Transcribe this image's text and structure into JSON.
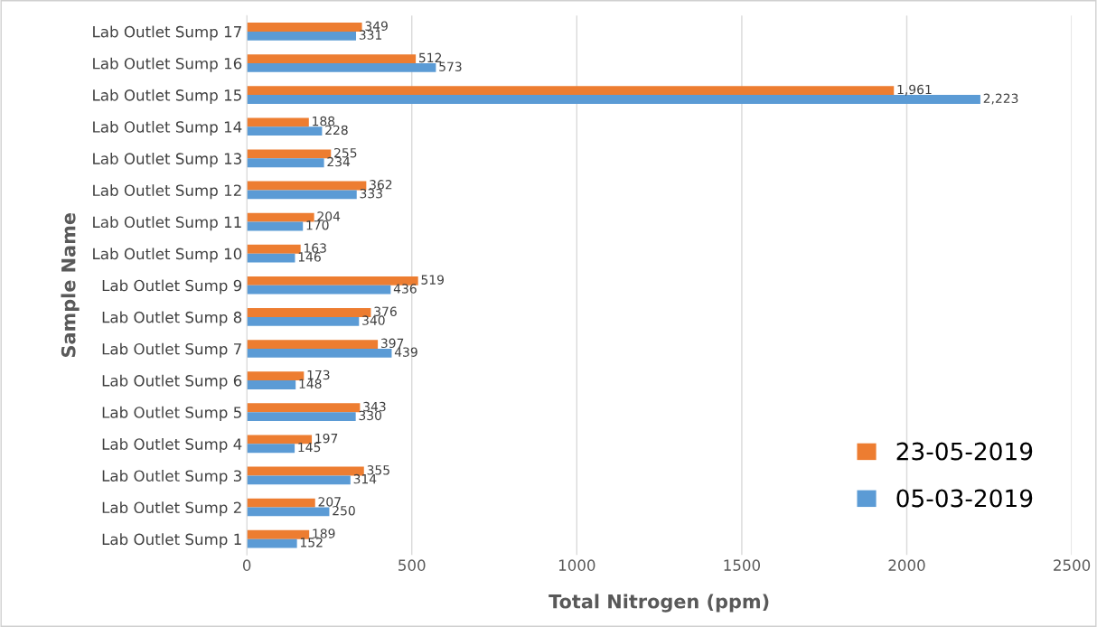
{
  "chart_data": {
    "type": "bar",
    "orientation": "horizontal",
    "xlabel": "Total Nitrogen (ppm)",
    "ylabel": "Sample Name",
    "categories": [
      "Lab Outlet Sump 17",
      "Lab Outlet Sump 16",
      "Lab Outlet Sump 15",
      "Lab Outlet Sump 14",
      "Lab Outlet Sump 13",
      "Lab Outlet Sump 12",
      "Lab Outlet Sump 11",
      "Lab Outlet Sump 10",
      "Lab Outlet Sump 9",
      "Lab Outlet Sump 8",
      "Lab Outlet Sump 7",
      "Lab Outlet Sump 6",
      "Lab Outlet Sump 5",
      "Lab Outlet Sump 4",
      "Lab Outlet Sump 3",
      "Lab Outlet Sump 2",
      "Lab Outlet Sump 1"
    ],
    "series": [
      {
        "name": "23-05-2019",
        "color": "#ed7d31",
        "values": [
          349,
          512,
          1961,
          188,
          255,
          362,
          204,
          163,
          519,
          376,
          397,
          173,
          343,
          197,
          355,
          207,
          189
        ],
        "value_labels": [
          "349",
          "512",
          "1,961",
          "188",
          "255",
          "362",
          "204",
          "163",
          "519",
          "376",
          "397",
          "173",
          "343",
          "197",
          "355",
          "207",
          "189"
        ]
      },
      {
        "name": "05-03-2019",
        "color": "#5b9bd5",
        "values": [
          331,
          573,
          2223,
          228,
          234,
          333,
          170,
          146,
          436,
          340,
          439,
          148,
          330,
          145,
          314,
          250,
          152
        ],
        "value_labels": [
          "331",
          "573",
          "2,223",
          "228",
          "234",
          "333",
          "170",
          "146",
          "436",
          "340",
          "439",
          "148",
          "330",
          "145",
          "314",
          "250",
          "152"
        ]
      }
    ],
    "xlim": [
      0,
      2500
    ],
    "xticks": [
      0,
      500,
      1000,
      1500,
      2000,
      2500
    ],
    "grid": "x",
    "legend": "bottom right"
  }
}
